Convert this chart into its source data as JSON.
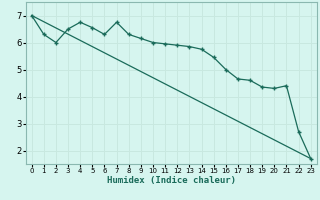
{
  "xlabel": "Humidex (Indice chaleur)",
  "background_color": "#d6f5ef",
  "grid_color_major": "#c8e8e0",
  "grid_color_minor": "#e0f5f0",
  "line_color": "#1a6b5a",
  "xlim": [
    -0.5,
    23.5
  ],
  "ylim": [
    1.5,
    7.5
  ],
  "yticks": [
    2,
    3,
    4,
    5,
    6,
    7
  ],
  "xticks": [
    0,
    1,
    2,
    3,
    4,
    5,
    6,
    7,
    8,
    9,
    10,
    11,
    12,
    13,
    14,
    15,
    16,
    17,
    18,
    19,
    20,
    21,
    22,
    23
  ],
  "line1_x": [
    0,
    1,
    2,
    3,
    4,
    5,
    6,
    7,
    8,
    9,
    10,
    11,
    12,
    13,
    14,
    15,
    16,
    17,
    18,
    19,
    20,
    21,
    22,
    23
  ],
  "line1_y": [
    7.0,
    6.3,
    6.0,
    6.5,
    6.75,
    6.55,
    6.3,
    6.75,
    6.3,
    6.15,
    6.0,
    5.95,
    5.9,
    5.85,
    5.75,
    5.45,
    5.0,
    4.65,
    4.6,
    4.35,
    4.3,
    4.4,
    2.7,
    1.7
  ],
  "line2_x": [
    0,
    23
  ],
  "line2_y": [
    7.0,
    1.7
  ]
}
